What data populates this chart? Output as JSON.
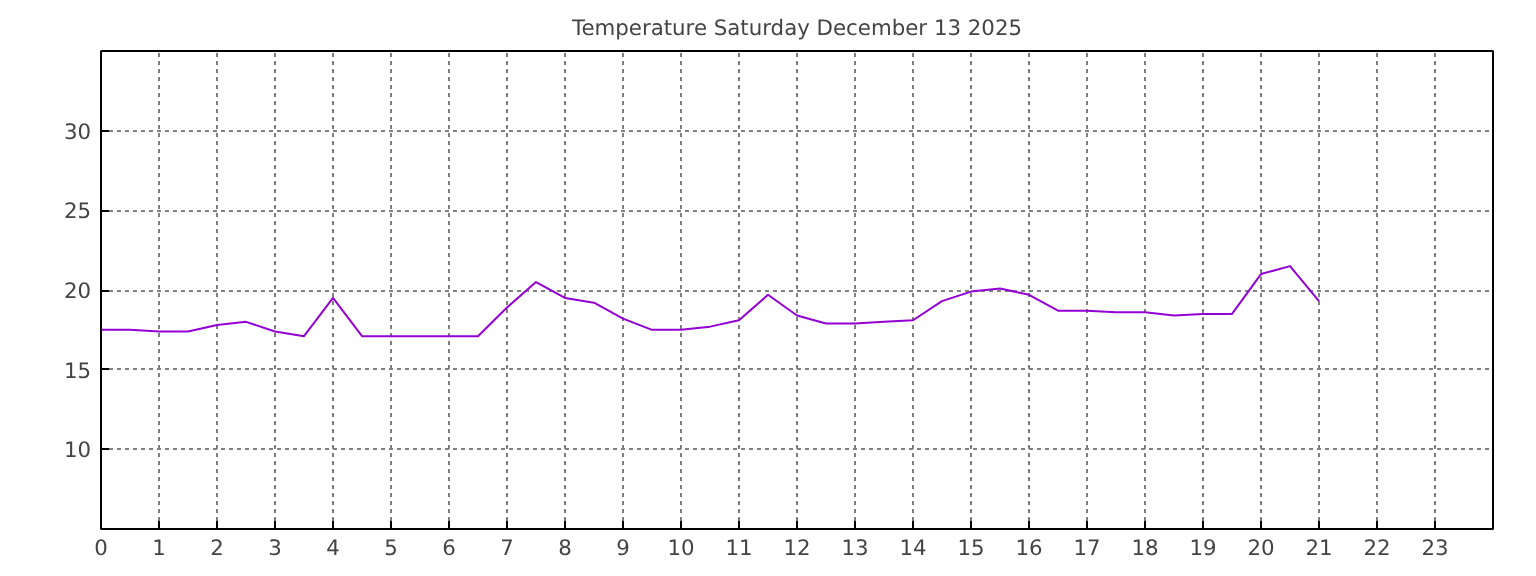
{
  "chart_data": {
    "type": "line",
    "title": "Temperature Saturday December 13 2025",
    "x": [
      0,
      0.5,
      1,
      1.5,
      2,
      2.5,
      3,
      3.5,
      4,
      4.5,
      5,
      5.5,
      6,
      6.5,
      7,
      7.5,
      8,
      8.5,
      9,
      9.5,
      10,
      10.5,
      11,
      11.5,
      12,
      12.5,
      13,
      13.5,
      14,
      14.5,
      15,
      15.5,
      16,
      16.5,
      17,
      17.5,
      18,
      18.5,
      19,
      19.5,
      20,
      20.5,
      21
    ],
    "series": [
      {
        "color": "#9400d3",
        "values": [
          17.5,
          17.5,
          17.4,
          17.4,
          17.8,
          18.0,
          17.4,
          17.1,
          19.5,
          17.1,
          17.1,
          17.1,
          17.1,
          17.1,
          18.9,
          20.5,
          19.5,
          19.2,
          18.2,
          17.5,
          17.5,
          17.7,
          18.1,
          19.7,
          18.4,
          17.9,
          17.9,
          18.0,
          18.1,
          19.3,
          19.9,
          20.1,
          19.7,
          18.7,
          18.7,
          18.6,
          18.6,
          18.4,
          18.5,
          18.5,
          21.0,
          21.5,
          19.3
        ]
      }
    ],
    "xlim": [
      0,
      24
    ],
    "xticks": [
      0,
      1,
      2,
      3,
      4,
      5,
      6,
      7,
      8,
      9,
      10,
      11,
      12,
      13,
      14,
      15,
      16,
      17,
      18,
      19,
      20,
      21,
      22,
      23
    ],
    "ylim": [
      5,
      35
    ],
    "yticks": [
      10,
      15,
      20,
      25,
      30
    ],
    "grid": true,
    "line_style": "solid"
  }
}
